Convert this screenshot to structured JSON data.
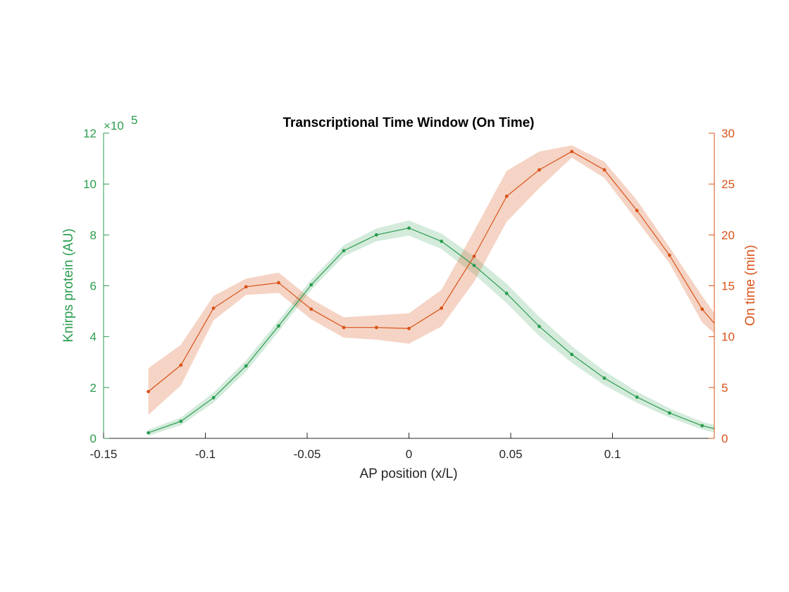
{
  "chart_data": {
    "type": "line",
    "title": "Transcriptional Time Window (On Time)",
    "xlabel": "AP position (x/L)",
    "ylabel_left": "Knirps protein (AU)",
    "ylabel_right": "On time (min)",
    "left_exponent_prefix": "×10",
    "left_exponent": "5",
    "xlim": [
      -0.15,
      0.15
    ],
    "ylim_left": [
      0,
      12
    ],
    "ylim_right": [
      0,
      30
    ],
    "x_ticks": [
      -0.15,
      -0.1,
      -0.05,
      0,
      0.05,
      0.1
    ],
    "x_tick_labels": [
      "-0.15",
      "-0.1",
      "-0.05",
      "0",
      "0.05",
      "0.1"
    ],
    "y_left_ticks": [
      0,
      2,
      4,
      6,
      8,
      10,
      12
    ],
    "y_left_tick_labels": [
      "0",
      "2",
      "4",
      "6",
      "8",
      "10",
      "12"
    ],
    "y_right_ticks": [
      0,
      5,
      10,
      15,
      20,
      25,
      30
    ],
    "y_right_tick_labels": [
      "0",
      "5",
      "10",
      "15",
      "20",
      "25",
      "30"
    ],
    "grid": false,
    "colors": {
      "knirps": "#2a9d4e",
      "ontime": "#d95319",
      "knirps_band": "#2a9d4e",
      "ontime_band": "#d95319"
    },
    "x": [
      -0.128,
      -0.112,
      -0.096,
      -0.08,
      -0.064,
      -0.048,
      -0.032,
      -0.016,
      0,
      0.016,
      0.032,
      0.048,
      0.064,
      0.08,
      0.096,
      0.112,
      0.128,
      0.144,
      0.15
    ],
    "series": [
      {
        "key": "knirps",
        "axis": "left",
        "values": [
          0.22,
          0.67,
          1.6,
          2.85,
          4.42,
          6.04,
          7.38,
          8.0,
          8.27,
          7.75,
          6.8,
          5.7,
          4.4,
          3.3,
          2.37,
          1.62,
          1.0,
          0.5,
          0.38
        ],
        "err": [
          0.12,
          0.15,
          0.2,
          0.22,
          0.22,
          0.2,
          0.22,
          0.25,
          0.3,
          0.3,
          0.35,
          0.38,
          0.38,
          0.33,
          0.28,
          0.22,
          0.18,
          0.15,
          0.15
        ]
      },
      {
        "key": "ontime",
        "axis": "right",
        "values": [
          4.6,
          7.2,
          12.8,
          14.9,
          15.3,
          12.7,
          10.9,
          10.9,
          10.8,
          12.8,
          17.9,
          23.8,
          26.4,
          28.2,
          26.4,
          22.4,
          18.0,
          12.7,
          11.3
        ],
        "err": [
          2.3,
          2.0,
          1.2,
          0.8,
          1.0,
          1.0,
          1.0,
          1.2,
          1.5,
          1.8,
          2.5,
          2.5,
          1.8,
          0.6,
          0.8,
          1.0,
          0.8,
          1.3,
          1.0
        ]
      }
    ]
  }
}
